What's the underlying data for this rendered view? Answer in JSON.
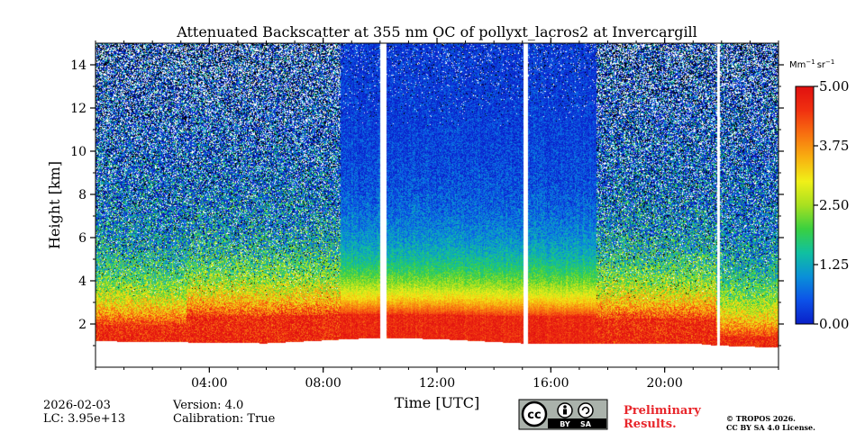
{
  "chart_data": {
    "type": "heatmap",
    "title": "Attenuated Backscatter at 355 nm OC of pollyxt_lacros2 at Invercargill",
    "xlabel": "Time [UTC]",
    "ylabel": "Height [km]",
    "x_unit": "hour UTC",
    "xlim": [
      0,
      24
    ],
    "ylim": [
      0,
      15
    ],
    "xticks": [
      {
        "value": 4,
        "label": "04:00"
      },
      {
        "value": 8,
        "label": "08:00"
      },
      {
        "value": 12,
        "label": "12:00"
      },
      {
        "value": 16,
        "label": "16:00"
      },
      {
        "value": 20,
        "label": "20:00"
      }
    ],
    "yticks": [
      {
        "value": 2,
        "label": "2"
      },
      {
        "value": 4,
        "label": "4"
      },
      {
        "value": 6,
        "label": "6"
      },
      {
        "value": 8,
        "label": "8"
      },
      {
        "value": 10,
        "label": "10"
      },
      {
        "value": 12,
        "label": "12"
      },
      {
        "value": 14,
        "label": "14"
      }
    ],
    "colorbar": {
      "unit_base1": "Mm",
      "unit_exp1": "−1",
      "unit_base2": "sr",
      "unit_exp2": "−1",
      "min": 0,
      "max": 5,
      "ticks": [
        {
          "value": 0,
          "label": "0.00"
        },
        {
          "value": 1.25,
          "label": "1.25"
        },
        {
          "value": 2.5,
          "label": "2.50"
        },
        {
          "value": 3.75,
          "label": "3.75"
        },
        {
          "value": 5,
          "label": "5.00"
        }
      ],
      "colors": [
        "#0a1fc8",
        "#0c52e8",
        "#0a90d8",
        "#10c0a0",
        "#3ad040",
        "#a8e020",
        "#f0f018",
        "#f8b010",
        "#f87010",
        "#f03010",
        "#e01010"
      ]
    },
    "data_gaps_hours": [
      {
        "start": 10.02,
        "end": 10.22
      },
      {
        "start": 15.05,
        "end": 15.2
      },
      {
        "start": 21.85,
        "end": 21.95
      }
    ],
    "ground_level_km": [
      {
        "hour": 0,
        "km": 1.2
      },
      {
        "hour": 3,
        "km": 1.15
      },
      {
        "hour": 6,
        "km": 1.1
      },
      {
        "hour": 9,
        "km": 1.3
      },
      {
        "hour": 10,
        "km": 1.35
      },
      {
        "hour": 12,
        "km": 1.3
      },
      {
        "hour": 15,
        "km": 1.1
      },
      {
        "hour": 18,
        "km": 1.1
      },
      {
        "hour": 21,
        "km": 1.1
      },
      {
        "hour": 21.8,
        "km": 1.0
      },
      {
        "hour": 24,
        "km": 0.9
      }
    ],
    "profile_segments": [
      {
        "start": 0,
        "end": 3.2,
        "bl_top_km": 2.6,
        "noise": "high"
      },
      {
        "start": 3.2,
        "end": 8.6,
        "bl_top_km": 3.4,
        "noise": "high"
      },
      {
        "start": 8.6,
        "end": 17.6,
        "bl_top_km": 3.4,
        "noise": "low"
      },
      {
        "start": 17.6,
        "end": 21.8,
        "bl_top_km": 3.2,
        "noise": "high"
      },
      {
        "start": 21.8,
        "end": 24,
        "bl_top_km": 1.8,
        "noise": "high"
      }
    ]
  },
  "meta": {
    "date": "2026-02-03",
    "lc_label": "LC: 3.95e+13",
    "version": "Version: 4.0",
    "calibration": "Calibration: True"
  },
  "license": {
    "cc_label": "cc",
    "by_label": "BY",
    "sa_label": "SA",
    "preliminary_line1": "Preliminary",
    "preliminary_line2": "Results.",
    "copyright_line1": "© TROPOS 2026.",
    "copyright_line2": "CC BY SA 4.0 License."
  }
}
